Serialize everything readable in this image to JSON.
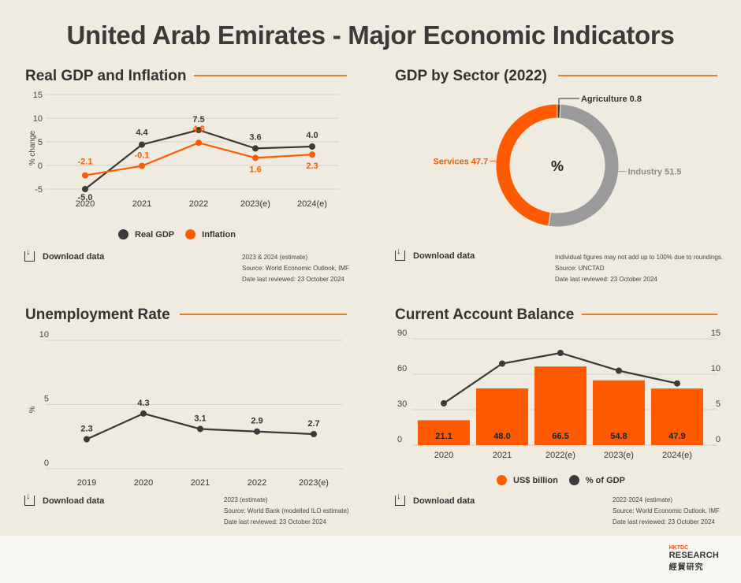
{
  "page": {
    "title": "United Arab Emirates - Major Economic Indicators"
  },
  "common": {
    "download_label": "Download data"
  },
  "colors": {
    "dark": "#3a3a3a",
    "orange": "#ff5a00",
    "grey": "#9a9a9a",
    "accent_rule": "#d9802b"
  },
  "panels": {
    "gdp_inflation": {
      "title": "Real GDP and Inflation",
      "notes": [
        "2023 & 2024 (estimate)",
        "Source: World Economic Outlook, IMF",
        "Date last reviewed: 23 October 2024"
      ]
    },
    "sector": {
      "title": "GDP by Sector (2022)",
      "center_label": "%",
      "notes": [
        "Individual figures may not add up to 100% due to roundings.",
        "Source: UNCTAD",
        "Date last reviewed: 23 October 2024"
      ]
    },
    "unemployment": {
      "title": "Unemployment Rate",
      "notes": [
        "2023 (estimate)",
        "Source: World Bank (modelled ILO estimate)",
        "Date last reviewed: 23 October 2024"
      ]
    },
    "current_account": {
      "title": "Current Account Balance",
      "notes": [
        "2022-2024 (estimate)",
        "Source: World Economic Outlook, IMF",
        "Date last reviewed: 23 October 2024"
      ]
    }
  },
  "logo": {
    "brand": "HKTDC",
    "research": "RESEARCH",
    "chinese": "經貿研究"
  },
  "chart_data": [
    {
      "id": "gdp_inflation",
      "type": "line",
      "categories": [
        "2020",
        "2021",
        "2022",
        "2023(e)",
        "2024(e)"
      ],
      "series": [
        {
          "name": "Real GDP",
          "values": [
            -5.0,
            4.4,
            7.5,
            3.6,
            4.0
          ],
          "labels": [
            "-5.0",
            "4.4",
            "7.5",
            "3.6",
            "4.0"
          ],
          "color": "#3a3a3a"
        },
        {
          "name": "Inflation",
          "values": [
            -2.1,
            -0.1,
            4.8,
            1.6,
            2.3
          ],
          "labels": [
            "-2.1",
            "-0.1",
            "4.8",
            "1.6",
            "2.3"
          ],
          "color": "#ff5a00"
        }
      ],
      "ylabel": "% change",
      "yticks": [
        "-5",
        "0",
        "5",
        "10",
        "15"
      ],
      "ylim": [
        -5,
        15
      ],
      "grid": true,
      "legend": "bottom"
    },
    {
      "id": "sector",
      "type": "pie",
      "slices": [
        {
          "name": "Agriculture",
          "value": 0.8,
          "label": "Agriculture 0.8",
          "color": "#3a3a3a"
        },
        {
          "name": "Industry",
          "value": 51.5,
          "label": "Industry 51.5",
          "color": "#9a9a9a"
        },
        {
          "name": "Services",
          "value": 47.7,
          "label": "Services 47.7",
          "color": "#ff5a00"
        }
      ],
      "donut": true
    },
    {
      "id": "unemployment",
      "type": "line",
      "categories": [
        "2019",
        "2020",
        "2021",
        "2022",
        "2023(e)"
      ],
      "series": [
        {
          "name": "Unemployment rate",
          "values": [
            2.3,
            4.3,
            3.1,
            2.9,
            2.7
          ],
          "labels": [
            "2.3",
            "4.3",
            "3.1",
            "2.9",
            "2.7"
          ],
          "color": "#3a3a3a"
        }
      ],
      "ylabel": "%",
      "yticks": [
        "0",
        "5",
        "10"
      ],
      "ylim": [
        0,
        10
      ],
      "grid": true
    },
    {
      "id": "current_account",
      "type": "bar",
      "categories": [
        "2020",
        "2021",
        "2022(e)",
        "2023(e)",
        "2024(e)"
      ],
      "series": [
        {
          "name": "US$ billion",
          "type": "bar",
          "values": [
            21.1,
            48.0,
            66.5,
            54.8,
            47.9
          ],
          "labels": [
            "21.1",
            "48.0",
            "66.5",
            "54.8",
            "47.9"
          ],
          "color": "#ff5a00",
          "axis": "left"
        },
        {
          "name": "% of GDP",
          "type": "line",
          "values": [
            5.9,
            11.5,
            13.0,
            10.5,
            8.7
          ],
          "color": "#3a3a3a",
          "axis": "right"
        }
      ],
      "yticks_left": [
        "0",
        "30",
        "60",
        "90"
      ],
      "ylim_left": [
        0,
        90
      ],
      "yticks_right": [
        "0",
        "5",
        "10",
        "15"
      ],
      "ylim_right": [
        0,
        15
      ],
      "grid": true,
      "legend": "bottom"
    }
  ]
}
